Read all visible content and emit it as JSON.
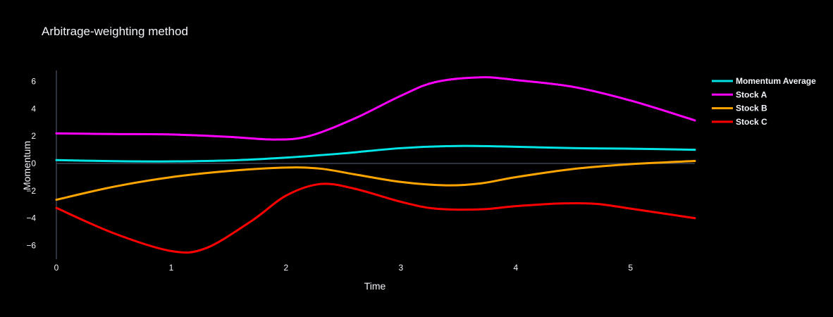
{
  "chart_data": {
    "type": "line",
    "title": "Arbitrage-weighting method",
    "xlabel": "Time",
    "ylabel": "Momentum",
    "xlim": [
      0,
      5.56
    ],
    "ylim": [
      -7.0,
      6.8
    ],
    "x_ticks": [
      0,
      1,
      2,
      3,
      4,
      5
    ],
    "y_ticks": [
      -6,
      -4,
      -2,
      0,
      2,
      4,
      6
    ],
    "grid": false,
    "zero_line": true,
    "legend_position": "top-right",
    "background": "#000000",
    "series": [
      {
        "name": "Momentum Average",
        "color": "#00e5e5",
        "points": [
          [
            0,
            0.25
          ],
          [
            0.5,
            0.17
          ],
          [
            1.0,
            0.15
          ],
          [
            1.5,
            0.22
          ],
          [
            2.0,
            0.43
          ],
          [
            2.5,
            0.74
          ],
          [
            3.0,
            1.12
          ],
          [
            3.5,
            1.28
          ],
          [
            4.0,
            1.22
          ],
          [
            4.5,
            1.12
          ],
          [
            5.0,
            1.08
          ],
          [
            5.56,
            1.0
          ]
        ]
      },
      {
        "name": "Stock A",
        "color": "#ff00ff",
        "points": [
          [
            0,
            2.2
          ],
          [
            0.5,
            2.15
          ],
          [
            1.0,
            2.12
          ],
          [
            1.5,
            1.95
          ],
          [
            1.9,
            1.75
          ],
          [
            2.2,
            2.0
          ],
          [
            2.6,
            3.3
          ],
          [
            3.0,
            4.95
          ],
          [
            3.3,
            5.95
          ],
          [
            3.7,
            6.3
          ],
          [
            4.0,
            6.1
          ],
          [
            4.5,
            5.6
          ],
          [
            5.0,
            4.6
          ],
          [
            5.56,
            3.15
          ]
        ]
      },
      {
        "name": "Stock B",
        "color": "#ffa500",
        "points": [
          [
            0,
            -2.65
          ],
          [
            0.5,
            -1.7
          ],
          [
            1.0,
            -1.0
          ],
          [
            1.5,
            -0.55
          ],
          [
            2.0,
            -0.3
          ],
          [
            2.3,
            -0.38
          ],
          [
            2.6,
            -0.8
          ],
          [
            3.0,
            -1.35
          ],
          [
            3.4,
            -1.6
          ],
          [
            3.7,
            -1.45
          ],
          [
            4.0,
            -1.0
          ],
          [
            4.5,
            -0.4
          ],
          [
            5.0,
            -0.05
          ],
          [
            5.56,
            0.18
          ]
        ]
      },
      {
        "name": "Stock C",
        "color": "#ff0000",
        "points": [
          [
            0,
            -3.25
          ],
          [
            0.5,
            -5.1
          ],
          [
            1.0,
            -6.4
          ],
          [
            1.3,
            -6.2
          ],
          [
            1.7,
            -4.2
          ],
          [
            2.0,
            -2.35
          ],
          [
            2.3,
            -1.5
          ],
          [
            2.6,
            -1.85
          ],
          [
            3.0,
            -2.8
          ],
          [
            3.3,
            -3.3
          ],
          [
            3.7,
            -3.35
          ],
          [
            4.0,
            -3.12
          ],
          [
            4.4,
            -2.92
          ],
          [
            4.7,
            -2.95
          ],
          [
            5.0,
            -3.3
          ],
          [
            5.56,
            -4.0
          ]
        ]
      }
    ]
  }
}
